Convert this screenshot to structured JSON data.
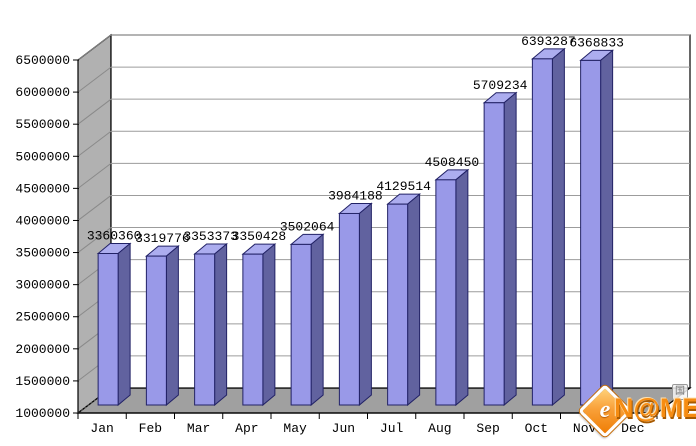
{
  "chart_data": {
    "type": "bar",
    "title": "",
    "xlabel": "",
    "ylabel": "",
    "categories": [
      "Jan",
      "Feb",
      "Mar",
      "Apr",
      "May",
      "Jun",
      "Jul",
      "Aug",
      "Sep",
      "Oct",
      "Nov",
      "Dec"
    ],
    "values": [
      3360360,
      3319776,
      3353373,
      3350428,
      3502064,
      3984188,
      4129514,
      4508450,
      5709234,
      6393287,
      6368833,
      null
    ],
    "data_labels": [
      "3360360",
      "3319776",
      "3353373",
      "3350428",
      "3502064",
      "3984188",
      "4129514",
      "4508450",
      "5709234",
      "6393287",
      "6368833",
      ""
    ],
    "y_axis": {
      "min": 1000000,
      "max": 6500000,
      "step": 500000,
      "tick_labels": [
        "1000000",
        "1500000",
        "2000000",
        "2500000",
        "3000000",
        "3500000",
        "4000000",
        "4500000",
        "5000000",
        "5500000",
        "6000000",
        "6500000"
      ]
    },
    "grid": true,
    "legend": false,
    "style": "3d-column",
    "colors": {
      "bar_front": "#9999E8",
      "bar_top": "#ACADEF",
      "bar_side": "#61629F",
      "bar_edge": "#222266",
      "wall": "#B1B1B1",
      "floor": "#A0A0A0",
      "back_wall": "#FFFFFF",
      "gridline": "#9C9C9C",
      "wall_line": "#8A8A8A",
      "axis": "#000000"
    }
  },
  "watermark": {
    "text": "N@ME",
    "diamond_glyph": "e",
    "badge": "国",
    "accent_color": "#F68C12"
  }
}
